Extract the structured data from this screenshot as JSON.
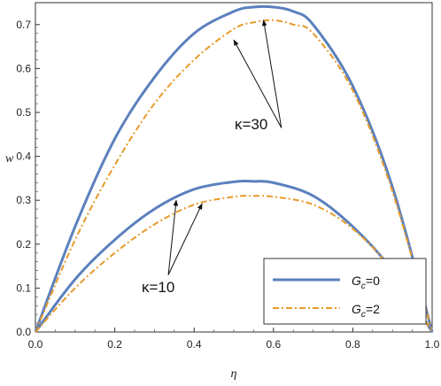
{
  "chart_data": {
    "type": "line",
    "xlabel": "η",
    "ylabel": "w",
    "xlim": [
      0,
      1
    ],
    "ylim": [
      0,
      0.75
    ],
    "xticks": [
      "0.0",
      "0.2",
      "0.4",
      "0.6",
      "0.8",
      "1.0"
    ],
    "yticks": [
      "0.0",
      "0.1",
      "0.2",
      "0.3",
      "0.4",
      "0.5",
      "0.6",
      "0.7"
    ],
    "grid": false,
    "legend_position": "bottom-right",
    "legend": [
      {
        "label_base": "G",
        "label_sub": "c",
        "label_rest": "=0",
        "style": "solid",
        "color": "#5b80bd"
      },
      {
        "label_base": "G",
        "label_sub": "c",
        "label_rest": "=2",
        "style": "dash-dot",
        "color": "#e79a2b"
      }
    ],
    "annotations": [
      {
        "text": "κ=30"
      },
      {
        "text": "κ=10"
      }
    ],
    "series": [
      {
        "group": "κ=30",
        "style": "solid",
        "color": "#5b80bd",
        "x": [
          0.0,
          0.1,
          0.2,
          0.3,
          0.4,
          0.5,
          0.55,
          0.6,
          0.65,
          0.7,
          0.8,
          0.9,
          1.0
        ],
        "y": [
          0.0,
          0.24,
          0.44,
          0.58,
          0.68,
          0.73,
          0.74,
          0.74,
          0.73,
          0.7,
          0.56,
          0.33,
          0.0
        ]
      },
      {
        "group": "κ=30",
        "style": "dash-dot",
        "color": "#e79a2b",
        "x": [
          0.0,
          0.1,
          0.2,
          0.3,
          0.4,
          0.5,
          0.55,
          0.6,
          0.65,
          0.7,
          0.8,
          0.9,
          1.0
        ],
        "y": [
          0.0,
          0.21,
          0.38,
          0.52,
          0.62,
          0.69,
          0.705,
          0.71,
          0.7,
          0.68,
          0.55,
          0.32,
          0.0
        ]
      },
      {
        "group": "κ=10",
        "style": "solid",
        "color": "#5b80bd",
        "x": [
          0.0,
          0.1,
          0.2,
          0.3,
          0.4,
          0.5,
          0.55,
          0.6,
          0.7,
          0.8,
          0.9,
          1.0
        ],
        "y": [
          0.0,
          0.12,
          0.21,
          0.28,
          0.325,
          0.342,
          0.343,
          0.34,
          0.31,
          0.24,
          0.14,
          0.0
        ]
      },
      {
        "group": "κ=10",
        "style": "dash-dot",
        "color": "#e79a2b",
        "x": [
          0.0,
          0.1,
          0.2,
          0.3,
          0.4,
          0.5,
          0.55,
          0.6,
          0.7,
          0.8,
          0.9,
          1.0
        ],
        "y": [
          0.0,
          0.1,
          0.18,
          0.245,
          0.29,
          0.308,
          0.31,
          0.308,
          0.29,
          0.235,
          0.14,
          0.0
        ]
      }
    ]
  }
}
